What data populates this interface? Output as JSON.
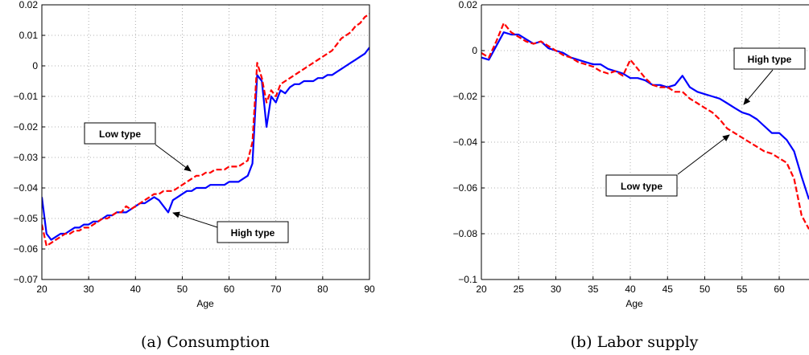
{
  "colors": {
    "high": "#0000ff",
    "low": "#ff0000",
    "grid": "#999999"
  },
  "chart_data": [
    {
      "type": "line",
      "caption": "(a)  Consumption",
      "xlabel": "Age",
      "ylabel": "",
      "xlim": [
        20,
        90
      ],
      "ylim": [
        -0.07,
        0.02
      ],
      "xticks": [
        "20",
        "30",
        "40",
        "50",
        "60",
        "70",
        "80",
        "90"
      ],
      "yticks": [
        "0.02",
        "0.01",
        "0",
        "−0.01",
        "−0.02",
        "−0.03",
        "−0.04",
        "−0.05",
        "−0.06",
        "−0.07"
      ],
      "grid": true,
      "annotations": [
        {
          "text": "Low type",
          "points_to": [
            53,
            -0.037
          ]
        },
        {
          "text": "High type",
          "points_to": [
            47,
            -0.045
          ]
        }
      ],
      "series": [
        {
          "style": "solid",
          "color": "#0000ff",
          "x": [
            20,
            21,
            22,
            23,
            24,
            25,
            26,
            27,
            28,
            29,
            30,
            31,
            32,
            33,
            34,
            35,
            36,
            37,
            38,
            39,
            40,
            41,
            42,
            43,
            44,
            45,
            46,
            47,
            48,
            49,
            50,
            51,
            52,
            53,
            54,
            55,
            56,
            57,
            58,
            59,
            60,
            61,
            62,
            63,
            64,
            65,
            66,
            67,
            68,
            69,
            70,
            71,
            72,
            73,
            74,
            75,
            76,
            77,
            78,
            79,
            80,
            81,
            82,
            83,
            84,
            85,
            86,
            87,
            88,
            89,
            90
          ],
          "y": [
            -0.043,
            -0.055,
            -0.057,
            -0.056,
            -0.055,
            -0.055,
            -0.054,
            -0.053,
            -0.053,
            -0.052,
            -0.052,
            -0.051,
            -0.051,
            -0.05,
            -0.049,
            -0.049,
            -0.048,
            -0.048,
            -0.048,
            -0.047,
            -0.046,
            -0.045,
            -0.045,
            -0.044,
            -0.043,
            -0.044,
            -0.046,
            -0.048,
            -0.044,
            -0.043,
            -0.042,
            -0.041,
            -0.041,
            -0.04,
            -0.04,
            -0.04,
            -0.039,
            -0.039,
            -0.039,
            -0.039,
            -0.038,
            -0.038,
            -0.038,
            -0.037,
            -0.036,
            -0.032,
            -0.003,
            -0.005,
            -0.02,
            -0.01,
            -0.012,
            -0.008,
            -0.009,
            -0.007,
            -0.006,
            -0.006,
            -0.005,
            -0.005,
            -0.005,
            -0.004,
            -0.004,
            -0.003,
            -0.003,
            -0.002,
            -0.001,
            0.0,
            0.001,
            0.002,
            0.003,
            0.004,
            0.006
          ]
        },
        {
          "style": "dashed",
          "color": "#ff0000",
          "x": [
            20,
            21,
            22,
            23,
            24,
            25,
            26,
            27,
            28,
            29,
            30,
            31,
            32,
            33,
            34,
            35,
            36,
            37,
            38,
            39,
            40,
            41,
            42,
            43,
            44,
            45,
            46,
            47,
            48,
            49,
            50,
            51,
            52,
            53,
            54,
            55,
            56,
            57,
            58,
            59,
            60,
            61,
            62,
            63,
            64,
            65,
            66,
            67,
            68,
            69,
            70,
            71,
            72,
            73,
            74,
            75,
            76,
            77,
            78,
            79,
            80,
            81,
            82,
            83,
            84,
            85,
            86,
            87,
            88,
            89,
            90
          ],
          "y": [
            -0.052,
            -0.059,
            -0.058,
            -0.057,
            -0.056,
            -0.055,
            -0.055,
            -0.054,
            -0.054,
            -0.053,
            -0.053,
            -0.052,
            -0.051,
            -0.05,
            -0.05,
            -0.049,
            -0.048,
            -0.048,
            -0.046,
            -0.047,
            -0.046,
            -0.045,
            -0.044,
            -0.043,
            -0.042,
            -0.042,
            -0.041,
            -0.041,
            -0.041,
            -0.04,
            -0.039,
            -0.038,
            -0.037,
            -0.036,
            -0.036,
            -0.035,
            -0.035,
            -0.034,
            -0.034,
            -0.034,
            -0.033,
            -0.033,
            -0.033,
            -0.032,
            -0.031,
            -0.025,
            0.001,
            -0.004,
            -0.012,
            -0.008,
            -0.01,
            -0.006,
            -0.005,
            -0.004,
            -0.003,
            -0.002,
            -0.001,
            0.0,
            0.001,
            0.002,
            0.003,
            0.004,
            0.005,
            0.007,
            0.009,
            0.01,
            0.011,
            0.013,
            0.014,
            0.016,
            0.017
          ]
        }
      ]
    },
    {
      "type": "line",
      "caption": "(b)  Labor supply",
      "xlabel": "Age",
      "ylabel": "",
      "xlim": [
        20,
        64
      ],
      "ylim": [
        -0.1,
        0.02
      ],
      "xticks": [
        "20",
        "25",
        "30",
        "35",
        "40",
        "45",
        "50",
        "55",
        "60"
      ],
      "yticks": [
        "0.02",
        "0",
        "−0.02",
        "−0.04",
        "−0.06",
        "−0.08",
        "−0.1"
      ],
      "grid": true,
      "annotations": [
        {
          "text": "High type",
          "points_to": [
            55,
            -0.025
          ]
        },
        {
          "text": "Low type",
          "points_to": [
            53,
            -0.036
          ]
        }
      ],
      "series": [
        {
          "style": "solid",
          "color": "#0000ff",
          "x": [
            20,
            21,
            22,
            23,
            24,
            25,
            26,
            27,
            28,
            29,
            30,
            31,
            32,
            33,
            34,
            35,
            36,
            37,
            38,
            39,
            40,
            41,
            42,
            43,
            44,
            45,
            46,
            47,
            48,
            49,
            50,
            51,
            52,
            53,
            54,
            55,
            56,
            57,
            58,
            59,
            60,
            61,
            62,
            63,
            64
          ],
          "y": [
            -0.003,
            -0.004,
            0.002,
            0.008,
            0.007,
            0.007,
            0.005,
            0.003,
            0.004,
            0.001,
            0.0,
            -0.001,
            -0.003,
            -0.004,
            -0.005,
            -0.006,
            -0.006,
            -0.008,
            -0.009,
            -0.01,
            -0.012,
            -0.012,
            -0.013,
            -0.015,
            -0.015,
            -0.016,
            -0.015,
            -0.011,
            -0.016,
            -0.018,
            -0.019,
            -0.02,
            -0.021,
            -0.023,
            -0.025,
            -0.027,
            -0.028,
            -0.03,
            -0.033,
            -0.036,
            -0.036,
            -0.039,
            -0.044,
            -0.055,
            -0.065
          ]
        },
        {
          "style": "dashed",
          "color": "#ff0000",
          "x": [
            20,
            21,
            22,
            23,
            24,
            25,
            26,
            27,
            28,
            29,
            30,
            31,
            32,
            33,
            34,
            35,
            36,
            37,
            38,
            39,
            40,
            41,
            42,
            43,
            44,
            45,
            46,
            47,
            48,
            49,
            50,
            51,
            52,
            53,
            54,
            55,
            56,
            57,
            58,
            59,
            60,
            61,
            62,
            63,
            64
          ],
          "y": [
            -0.001,
            -0.003,
            0.004,
            0.012,
            0.008,
            0.006,
            0.004,
            0.003,
            0.004,
            0.002,
            0.0,
            -0.002,
            -0.003,
            -0.005,
            -0.006,
            -0.007,
            -0.009,
            -0.01,
            -0.009,
            -0.011,
            -0.004,
            -0.008,
            -0.012,
            -0.015,
            -0.016,
            -0.016,
            -0.018,
            -0.018,
            -0.021,
            -0.023,
            -0.025,
            -0.027,
            -0.03,
            -0.034,
            -0.036,
            -0.038,
            -0.04,
            -0.042,
            -0.044,
            -0.045,
            -0.047,
            -0.049,
            -0.056,
            -0.072,
            -0.078
          ]
        }
      ]
    }
  ]
}
